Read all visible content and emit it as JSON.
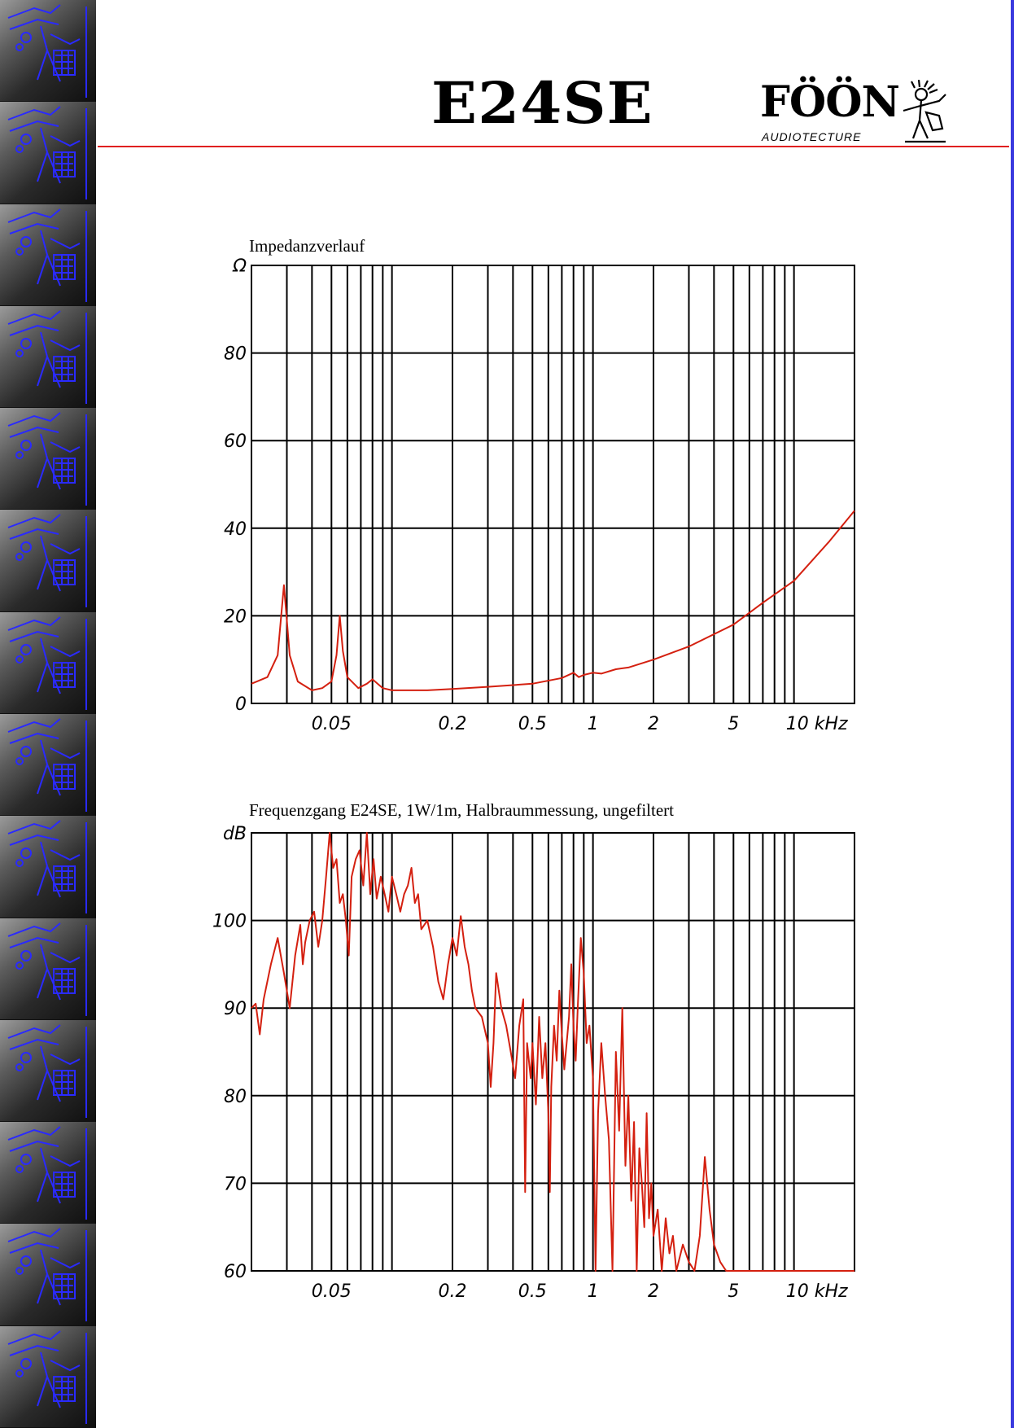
{
  "page": {
    "model": "E24SE",
    "brand": {
      "name": "FÖÖN",
      "tagline": "AUDIOTECTURE"
    },
    "colors": {
      "accent": "#e02020",
      "curve": "#d42010",
      "grid": "#000000",
      "sidebar_pattern": "#2a2aff",
      "edge": "#3a3adf"
    }
  },
  "chart_data": [
    {
      "type": "line",
      "title": "Impedanzverlauf",
      "ylabel": "Ω",
      "x_unit": "kHz",
      "x_scale": "log",
      "xlim": [
        0.02,
        20
      ],
      "ylim": [
        0,
        100
      ],
      "x_ticks": [
        {
          "value": 0.05,
          "label": "0.05"
        },
        {
          "value": 0.2,
          "label": "0.2"
        },
        {
          "value": 0.5,
          "label": "0.5"
        },
        {
          "value": 1,
          "label": "1"
        },
        {
          "value": 2,
          "label": "2"
        },
        {
          "value": 5,
          "label": "5"
        },
        {
          "value": 10,
          "label": "10 kHz"
        }
      ],
      "y_ticks": [
        {
          "value": 0,
          "label": "0"
        },
        {
          "value": 20,
          "label": "20"
        },
        {
          "value": 40,
          "label": "40"
        },
        {
          "value": 60,
          "label": "60"
        },
        {
          "value": 80,
          "label": "80"
        },
        {
          "value": 100,
          "label": "Ω"
        }
      ],
      "grid": true,
      "series": [
        {
          "points": [
            [
              0.02,
              4.5
            ],
            [
              0.024,
              6
            ],
            [
              0.027,
              11
            ],
            [
              0.029,
              27
            ],
            [
              0.031,
              11
            ],
            [
              0.034,
              5
            ],
            [
              0.04,
              3
            ],
            [
              0.045,
              3.5
            ],
            [
              0.05,
              5
            ],
            [
              0.053,
              11
            ],
            [
              0.055,
              20
            ],
            [
              0.057,
              12
            ],
            [
              0.06,
              6
            ],
            [
              0.068,
              3.5
            ],
            [
              0.075,
              4.5
            ],
            [
              0.08,
              5.5
            ],
            [
              0.09,
              3.5
            ],
            [
              0.1,
              3
            ],
            [
              0.15,
              3
            ],
            [
              0.2,
              3.3
            ],
            [
              0.3,
              3.8
            ],
            [
              0.5,
              4.5
            ],
            [
              0.7,
              5.8
            ],
            [
              0.8,
              7
            ],
            [
              0.85,
              6
            ],
            [
              0.9,
              6.5
            ],
            [
              1.0,
              7
            ],
            [
              1.1,
              6.8
            ],
            [
              1.3,
              7.8
            ],
            [
              1.5,
              8.2
            ],
            [
              2,
              10
            ],
            [
              3,
              13
            ],
            [
              5,
              18
            ],
            [
              7,
              23
            ],
            [
              10,
              28
            ],
            [
              15,
              37
            ],
            [
              20,
              44
            ]
          ]
        }
      ]
    },
    {
      "type": "line",
      "title": "Frequenzgang E24SE, 1W/1m, Halbraummessung, ungefiltert",
      "ylabel": "dB",
      "x_unit": "kHz",
      "x_scale": "log",
      "xlim": [
        0.02,
        20
      ],
      "ylim": [
        60,
        110
      ],
      "x_ticks": [
        {
          "value": 0.05,
          "label": "0.05"
        },
        {
          "value": 0.2,
          "label": "0.2"
        },
        {
          "value": 0.5,
          "label": "0.5"
        },
        {
          "value": 1,
          "label": "1"
        },
        {
          "value": 2,
          "label": "2"
        },
        {
          "value": 5,
          "label": "5"
        },
        {
          "value": 10,
          "label": "10 kHz"
        }
      ],
      "y_ticks": [
        {
          "value": 60,
          "label": "60"
        },
        {
          "value": 70,
          "label": "70"
        },
        {
          "value": 80,
          "label": "80"
        },
        {
          "value": 90,
          "label": "90"
        },
        {
          "value": 100,
          "label": "100"
        },
        {
          "value": 110,
          "label": "dB"
        }
      ],
      "grid": true,
      "series": [
        {
          "points": [
            [
              0.02,
              90
            ],
            [
              0.021,
              90.5
            ],
            [
              0.022,
              87
            ],
            [
              0.023,
              91
            ],
            [
              0.025,
              95
            ],
            [
              0.027,
              98
            ],
            [
              0.029,
              94
            ],
            [
              0.031,
              90
            ],
            [
              0.033,
              96
            ],
            [
              0.035,
              99.5
            ],
            [
              0.036,
              95
            ],
            [
              0.037,
              97.5
            ],
            [
              0.039,
              100
            ],
            [
              0.041,
              101
            ],
            [
              0.043,
              97
            ],
            [
              0.045,
              100
            ],
            [
              0.047,
              105
            ],
            [
              0.049,
              110
            ],
            [
              0.051,
              106
            ],
            [
              0.053,
              107
            ],
            [
              0.055,
              102
            ],
            [
              0.057,
              103
            ],
            [
              0.059,
              100
            ],
            [
              0.061,
              96
            ],
            [
              0.063,
              105
            ],
            [
              0.066,
              107
            ],
            [
              0.069,
              108
            ],
            [
              0.072,
              104
            ],
            [
              0.075,
              111
            ],
            [
              0.078,
              103
            ],
            [
              0.081,
              107
            ],
            [
              0.084,
              102.5
            ],
            [
              0.088,
              105
            ],
            [
              0.092,
              103
            ],
            [
              0.096,
              101
            ],
            [
              0.1,
              105
            ],
            [
              0.105,
              103
            ],
            [
              0.11,
              101
            ],
            [
              0.115,
              103
            ],
            [
              0.12,
              104
            ],
            [
              0.125,
              106
            ],
            [
              0.13,
              102
            ],
            [
              0.135,
              103
            ],
            [
              0.14,
              99
            ],
            [
              0.15,
              100
            ],
            [
              0.16,
              97
            ],
            [
              0.17,
              93
            ],
            [
              0.18,
              91
            ],
            [
              0.19,
              95
            ],
            [
              0.2,
              98
            ],
            [
              0.21,
              96
            ],
            [
              0.22,
              100.5
            ],
            [
              0.23,
              97
            ],
            [
              0.24,
              95
            ],
            [
              0.25,
              92
            ],
            [
              0.26,
              90
            ],
            [
              0.28,
              89
            ],
            [
              0.3,
              86
            ],
            [
              0.31,
              81
            ],
            [
              0.32,
              86
            ],
            [
              0.33,
              94
            ],
            [
              0.35,
              90
            ],
            [
              0.37,
              88
            ],
            [
              0.39,
              85
            ],
            [
              0.41,
              82
            ],
            [
              0.43,
              88
            ],
            [
              0.45,
              91
            ],
            [
              0.46,
              69
            ],
            [
              0.47,
              86
            ],
            [
              0.49,
              82
            ],
            [
              0.5,
              86
            ],
            [
              0.52,
              79
            ],
            [
              0.54,
              89
            ],
            [
              0.56,
              82
            ],
            [
              0.58,
              86
            ],
            [
              0.6,
              78
            ],
            [
              0.61,
              69
            ],
            [
              0.62,
              81
            ],
            [
              0.64,
              88
            ],
            [
              0.66,
              84
            ],
            [
              0.68,
              92
            ],
            [
              0.7,
              87
            ],
            [
              0.72,
              83
            ],
            [
              0.74,
              86
            ],
            [
              0.76,
              89
            ],
            [
              0.78,
              95
            ],
            [
              0.8,
              88
            ],
            [
              0.82,
              84
            ],
            [
              0.84,
              90
            ],
            [
              0.87,
              98
            ],
            [
              0.9,
              94
            ],
            [
              0.93,
              86
            ],
            [
              0.96,
              88
            ],
            [
              1.0,
              82
            ],
            [
              1.03,
              60
            ],
            [
              1.06,
              78
            ],
            [
              1.1,
              86
            ],
            [
              1.15,
              80
            ],
            [
              1.2,
              75
            ],
            [
              1.25,
              60
            ],
            [
              1.3,
              85
            ],
            [
              1.35,
              76
            ],
            [
              1.4,
              90
            ],
            [
              1.45,
              72
            ],
            [
              1.5,
              80
            ],
            [
              1.55,
              68
            ],
            [
              1.6,
              77
            ],
            [
              1.65,
              60
            ],
            [
              1.7,
              74
            ],
            [
              1.75,
              70
            ],
            [
              1.8,
              65
            ],
            [
              1.85,
              78
            ],
            [
              1.9,
              66
            ],
            [
              1.95,
              70
            ],
            [
              2.0,
              64
            ],
            [
              2.1,
              67
            ],
            [
              2.2,
              60
            ],
            [
              2.3,
              66
            ],
            [
              2.4,
              62
            ],
            [
              2.5,
              64
            ],
            [
              2.6,
              60
            ],
            [
              2.8,
              63
            ],
            [
              3.0,
              61
            ],
            [
              3.2,
              60
            ],
            [
              3.4,
              64
            ],
            [
              3.6,
              73
            ],
            [
              3.8,
              67
            ],
            [
              4.0,
              63
            ],
            [
              4.3,
              61
            ],
            [
              4.6,
              60
            ],
            [
              5,
              60
            ],
            [
              10,
              60
            ],
            [
              20,
              60
            ]
          ]
        }
      ]
    }
  ]
}
